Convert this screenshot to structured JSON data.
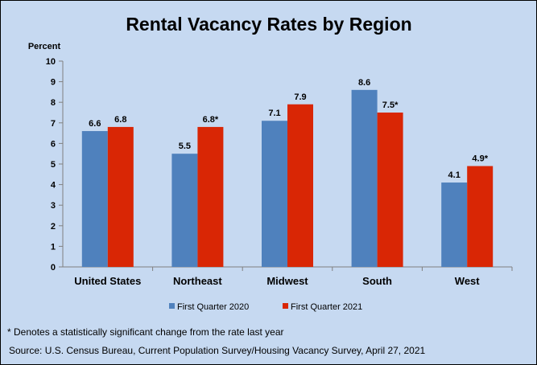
{
  "chart_data": {
    "type": "bar",
    "title": "Rental Vacancy Rates by Region",
    "ylabel": "Percent",
    "xlabel": "",
    "ylim": [
      0,
      10
    ],
    "yticks": [
      "0",
      "1",
      "2",
      "3",
      "4",
      "5",
      "6",
      "7",
      "8",
      "9",
      "10"
    ],
    "categories": [
      "United States",
      "Northeast",
      "Midwest",
      "South",
      "West"
    ],
    "series": [
      {
        "name": "First Quarter 2020",
        "color": "#4f81bd",
        "values": [
          6.6,
          5.5,
          7.1,
          8.6,
          4.1
        ],
        "labels": [
          "6.6",
          "5.5",
          "7.1",
          "8.6",
          "4.1"
        ]
      },
      {
        "name": "First Quarter 2021",
        "color": "#d92605",
        "values": [
          6.8,
          6.8,
          7.9,
          7.5,
          4.9
        ],
        "labels": [
          "6.8",
          "6.8*",
          "7.9",
          "7.5*",
          "4.9*"
        ]
      }
    ],
    "grid": false,
    "legend_position": "bottom"
  },
  "footnote": "* Denotes a statistically significant change from the rate last year",
  "source": "Source: U.S. Census Bureau, Current Population Survey/Housing Vacancy Survey, April 27, 2021"
}
